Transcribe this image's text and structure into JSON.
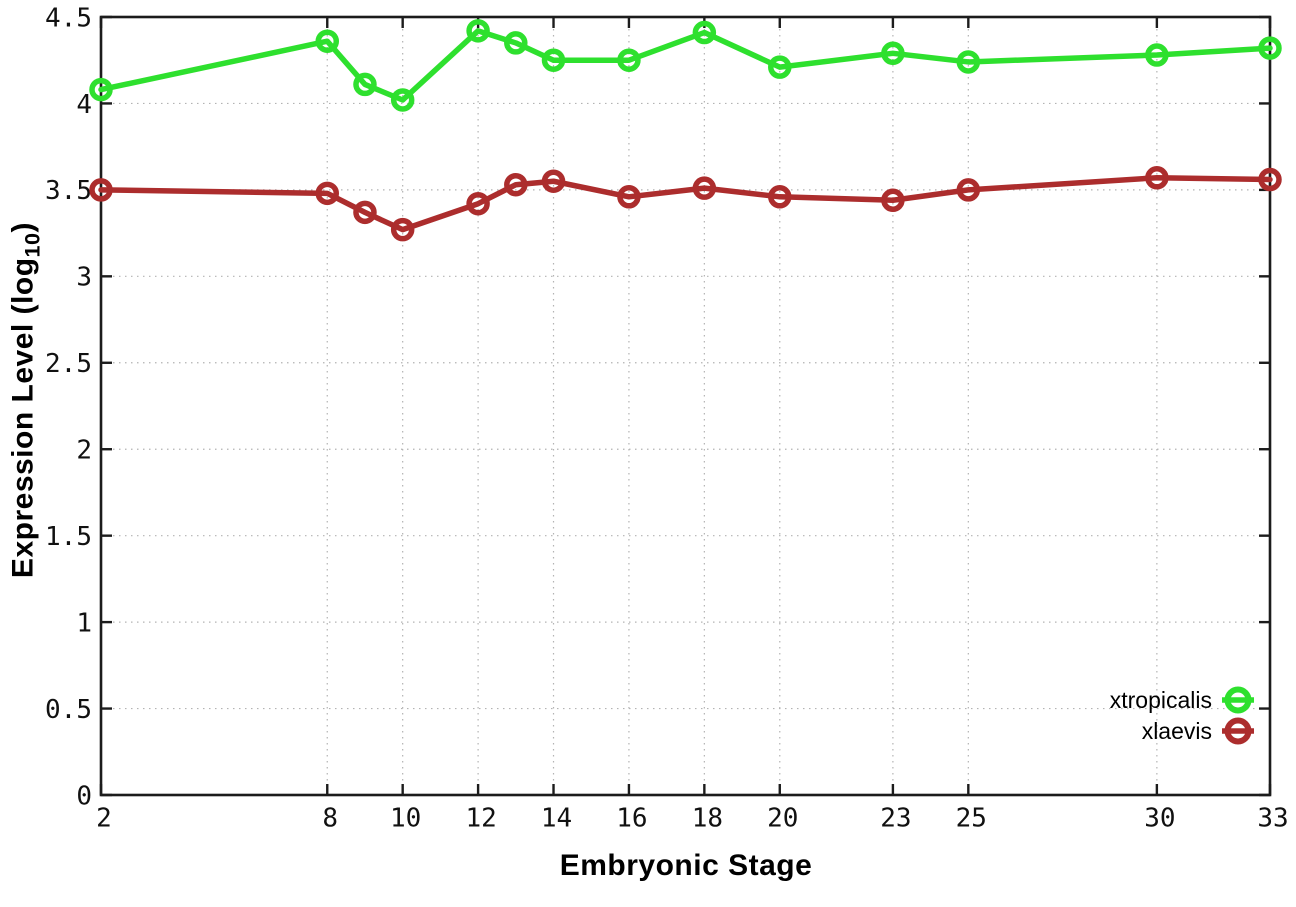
{
  "figure": {
    "background": "#ffffff",
    "axis_color": "#1c1c1c",
    "grid_color": "#b3b3b3",
    "tick_label_color": "#111111"
  },
  "chart_data": {
    "type": "line",
    "title": "",
    "xlabel": "Embryonic Stage",
    "ylabel": "Expression Level (log10)",
    "ylabel_parts": {
      "prefix": "Expression Level (log",
      "sub": "10",
      "suffix": ")"
    },
    "xlim": [
      2,
      33
    ],
    "ylim": [
      0,
      4.5
    ],
    "x_ticks": [
      2,
      8,
      10,
      12,
      14,
      16,
      18,
      20,
      23,
      25,
      30,
      33
    ],
    "x_tick_labels": [
      "2",
      "8",
      "10",
      "12",
      "14",
      "16",
      "18",
      "20",
      "23",
      "25",
      "30",
      "33"
    ],
    "y_ticks": [
      0,
      0.5,
      1,
      1.5,
      2,
      2.5,
      3,
      3.5,
      4,
      4.5
    ],
    "y_tick_labels": [
      "0",
      "0.5",
      "1",
      "1.5",
      "2",
      "2.5",
      "3",
      "3.5",
      "4",
      "4.5"
    ],
    "grid": "dotted",
    "legend": {
      "location": "inside-bottom-right",
      "entries": [
        "xtropicalis",
        "xlaevis"
      ]
    },
    "x": [
      2,
      8,
      9,
      10,
      12,
      13,
      14,
      16,
      18,
      20,
      23,
      25,
      30,
      33
    ],
    "series": [
      {
        "name": "xtropicalis",
        "color": "#2ee02e",
        "marker": "open-circle",
        "values": [
          4.08,
          4.36,
          4.11,
          4.02,
          4.42,
          4.35,
          4.25,
          4.25,
          4.41,
          4.21,
          4.29,
          4.24,
          4.28,
          4.32
        ]
      },
      {
        "name": "xlaevis",
        "color": "#ac2d2d",
        "marker": "open-circle",
        "values": [
          3.5,
          3.48,
          3.37,
          3.27,
          3.42,
          3.53,
          3.55,
          3.46,
          3.51,
          3.46,
          3.44,
          3.5,
          3.57,
          3.56
        ]
      }
    ]
  }
}
